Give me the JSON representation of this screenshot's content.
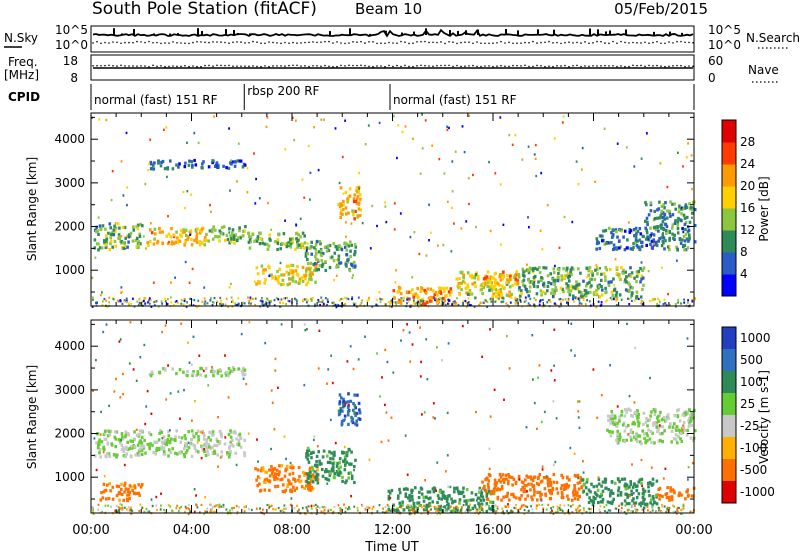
{
  "header": {
    "station_title": "South Pole Station (fitACF)",
    "beam": "Beam 10",
    "date": "05/Feb/2015"
  },
  "top_panels": {
    "nsky_label": "N.Sky",
    "nsearch_label": "N.Search",
    "noise_tick_top": "10^5",
    "noise_tick_bottom": "10^0",
    "freq_label_1": "Freq.",
    "freq_label_2": "[MHz]",
    "freq_tick_top": "18",
    "freq_tick_bottom": "8",
    "nave_label": "Nave",
    "nave_tick_top": "60",
    "nave_tick_bottom": "0",
    "cpid_label": "CPID"
  },
  "cpid_segments": [
    {
      "label": "normal (fast) 151 RF",
      "start_hour": 0.0,
      "end_hour": 6.1
    },
    {
      "label": "rbsp 200 RF",
      "start_hour": 6.1,
      "end_hour": 11.9
    },
    {
      "label": "normal (fast) 151 RF",
      "start_hour": 11.9,
      "end_hour": 24.0
    }
  ],
  "chart_data": [
    {
      "type": "heatmap",
      "quantity": "power",
      "ylabel": "Slant Range [km]",
      "xlabel": "",
      "xlim": [
        0,
        24
      ],
      "ylim": [
        180,
        4600
      ],
      "yticks": [
        "1000",
        "2000",
        "3000",
        "4000"
      ],
      "colorbar": {
        "label": "Power [dB]",
        "ticks": [
          "4",
          "8",
          "12",
          "16",
          "20",
          "24",
          "28"
        ],
        "colors": [
          "#0000ff",
          "#2a5cc8",
          "#2e8b57",
          "#8cc63f",
          "#ffd000",
          "#ff9a00",
          "#ff3b00",
          "#e00000"
        ]
      },
      "echo_regions": [
        {
          "t0": 0.1,
          "t1": 2.0,
          "r0": 1500,
          "r1": 2100,
          "level": 12
        },
        {
          "t0": 2.2,
          "t1": 4.6,
          "r0": 1600,
          "r1": 2000,
          "level": 20
        },
        {
          "t0": 4.6,
          "t1": 6.1,
          "r0": 1650,
          "r1": 2050,
          "level": 14
        },
        {
          "t0": 2.3,
          "t1": 6.1,
          "r0": 3350,
          "r1": 3550,
          "level": 6
        },
        {
          "t0": 6.2,
          "t1": 8.5,
          "r0": 1500,
          "r1": 1900,
          "level": 13
        },
        {
          "t0": 6.5,
          "t1": 9.0,
          "r0": 700,
          "r1": 1150,
          "level": 18
        },
        {
          "t0": 8.5,
          "t1": 10.5,
          "r0": 1000,
          "r1": 1700,
          "level": 11
        },
        {
          "t0": 9.8,
          "t1": 10.7,
          "r0": 2200,
          "r1": 2950,
          "level": 20
        },
        {
          "t0": 11.8,
          "t1": 14.5,
          "r0": 250,
          "r1": 650,
          "level": 22
        },
        {
          "t0": 14.5,
          "t1": 17.0,
          "r0": 400,
          "r1": 1000,
          "level": 16
        },
        {
          "t0": 15.5,
          "t1": 17.0,
          "r0": 700,
          "r1": 1000,
          "level": 21
        },
        {
          "t0": 17.0,
          "t1": 22.0,
          "r0": 400,
          "r1": 1100,
          "level": 12
        },
        {
          "t0": 20.0,
          "t1": 24.0,
          "r0": 1500,
          "r1": 2000,
          "level": 8
        },
        {
          "t0": 22.0,
          "t1": 24.0,
          "r0": 2000,
          "r1": 2600,
          "level": 10
        }
      ]
    },
    {
      "type": "heatmap",
      "quantity": "velocity",
      "ylabel": "Slant Range [km]",
      "xlabel": "Time UT",
      "xlim": [
        0,
        24
      ],
      "ylim": [
        180,
        4600
      ],
      "yticks": [
        "1000",
        "2000",
        "3000",
        "4000"
      ],
      "xticks": [
        "00:00",
        "04:00",
        "08:00",
        "12:00",
        "16:00",
        "20:00",
        "00:00"
      ],
      "colorbar": {
        "label": "Velocity [m s-1]",
        "ticks": [
          "1000",
          "500",
          "100",
          "25",
          "-25",
          "-100",
          "-500",
          "-1000"
        ],
        "colors": [
          "#2040c0",
          "#3070c0",
          "#2e8b57",
          "#66cc33",
          "#c8c8c8",
          "#ffb000",
          "#ff7000",
          "#e00000"
        ]
      },
      "echo_regions": [
        {
          "t0": 0.1,
          "t1": 6.1,
          "r0": 1500,
          "r1": 2100,
          "level": 25
        },
        {
          "t0": 0.3,
          "t1": 2.0,
          "r0": 500,
          "r1": 900,
          "level": -200
        },
        {
          "t0": 2.3,
          "t1": 6.1,
          "r0": 3350,
          "r1": 3550,
          "level": 25
        },
        {
          "t0": 6.5,
          "t1": 9.0,
          "r0": 700,
          "r1": 1300,
          "level": -200
        },
        {
          "t0": 8.5,
          "t1": 10.5,
          "r0": 900,
          "r1": 1700,
          "level": 200
        },
        {
          "t0": 9.8,
          "t1": 10.7,
          "r0": 2200,
          "r1": 2950,
          "level": 800
        },
        {
          "t0": 11.8,
          "t1": 16.0,
          "r0": 250,
          "r1": 800,
          "level": 200
        },
        {
          "t0": 15.5,
          "t1": 19.5,
          "r0": 500,
          "r1": 1100,
          "level": -300
        },
        {
          "t0": 19.5,
          "t1": 22.5,
          "r0": 400,
          "r1": 1000,
          "level": 200
        },
        {
          "t0": 22.5,
          "t1": 24.0,
          "r0": 500,
          "r1": 800,
          "level": -300
        },
        {
          "t0": 20.5,
          "t1": 24.0,
          "r0": 1800,
          "r1": 2600,
          "level": 25
        }
      ]
    }
  ]
}
